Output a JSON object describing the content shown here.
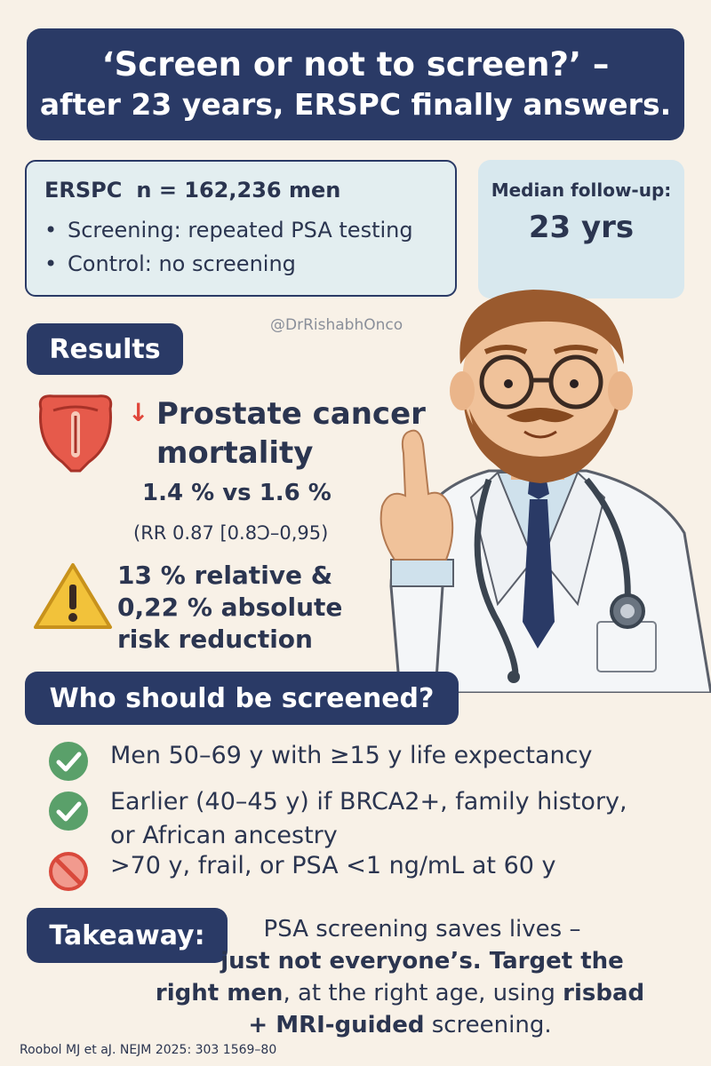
{
  "title": {
    "line1": "‘Screen or not to screen?’ –",
    "line2": "after 23 years, ERSPC finally answers."
  },
  "study": {
    "name": "ERSPC",
    "n": "n = 162,236 men",
    "bullets": [
      "Screening: repeated PSA testing",
      "Control: no screening"
    ]
  },
  "followup": {
    "label": "Median follow-up:",
    "value": "23 yrs"
  },
  "handle": "@DrRishabhOnco",
  "results": {
    "heading": "Results",
    "mortality_line1": "Prostate cancer",
    "mortality_line2": "mortality",
    "values": "1.4 % vs 1.6 %",
    "rr": "(RR 0.87 [0.8Ͻ–0,95)",
    "risk_line1": "13 % relative &",
    "risk_line2": "0,22 % absolute",
    "risk_line3": "risk reduction"
  },
  "who": {
    "heading": "Who should be screened?",
    "criteria": [
      "Men 50–69 y with ≥15 y life expectancy",
      "Earlier (40–45 y) if BRCA2+, family history,",
      "or African ancestry",
      ">70 y, frail, or PSA <1 ng/mL at 60 y"
    ]
  },
  "takeaway": {
    "heading": "Takeaway:",
    "line1": "PSA screening saves lives –",
    "line2": "just not everyone’s. Target the",
    "line3a": "right men",
    "line3b": ", at the right age, using ",
    "line3c": "risbad",
    "line4a": "+ MRI-guided",
    "line4b": " screening."
  },
  "citation": "Roobol MJ et aJ. NEJM 2025: 303 1569–80",
  "colors": {
    "navy": "#2a3a66",
    "background": "#f8f1e7",
    "box_light": "#e3eef0",
    "red": "#e0463a",
    "green": "#5aa06a",
    "yellow": "#f2c23a"
  }
}
